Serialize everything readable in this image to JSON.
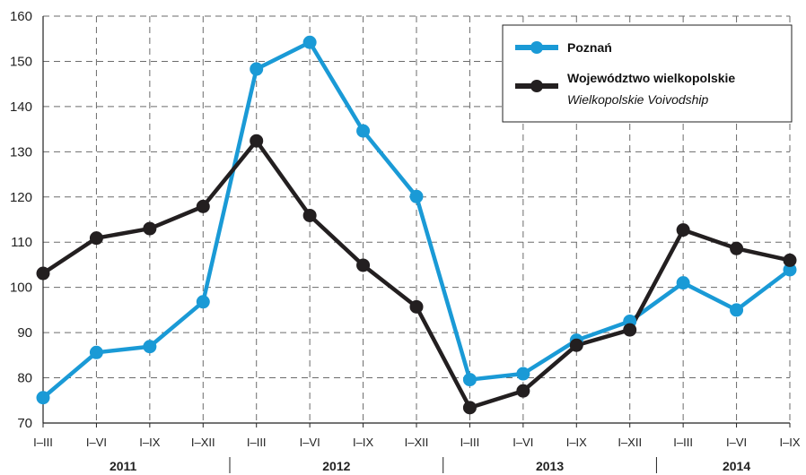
{
  "chart_data": {
    "type": "line",
    "title": "",
    "xlabel": "",
    "ylabel": "",
    "ylim": [
      70,
      160
    ],
    "yticks": [
      70,
      80,
      90,
      100,
      110,
      120,
      130,
      140,
      150,
      160
    ],
    "categories": [
      "I–III",
      "I–VI",
      "I–IX",
      "I–XII",
      "I–III",
      "I–VI",
      "I–IX",
      "I–XII",
      "I–III",
      "I–VI",
      "I–IX",
      "I–XII",
      "I–III",
      "I–VI",
      "I–IX"
    ],
    "years": [
      {
        "label": "2011",
        "start": 0,
        "end": 3
      },
      {
        "label": "2012",
        "start": 4,
        "end": 7
      },
      {
        "label": "2013",
        "start": 8,
        "end": 11
      },
      {
        "label": "2014",
        "start": 12,
        "end": 14
      }
    ],
    "grid": true,
    "legend_position": "top-right",
    "series": [
      {
        "name": "Poznań",
        "color": "#1a9ad6",
        "values": [
          75.6,
          85.6,
          86.9,
          96.8,
          148.3,
          154.2,
          134.6,
          120.1,
          79.6,
          80.9,
          88.3,
          92.5,
          101.0,
          95.0,
          103.9
        ]
      },
      {
        "name": "Województwo wielkopolskie",
        "subtitle": "Wielkopolskie Voivodship",
        "color": "#231f20",
        "values": [
          103.1,
          110.9,
          113.0,
          117.9,
          132.4,
          115.9,
          104.9,
          95.7,
          73.4,
          77.1,
          87.2,
          90.6,
          112.7,
          108.6,
          106.0
        ]
      }
    ]
  }
}
